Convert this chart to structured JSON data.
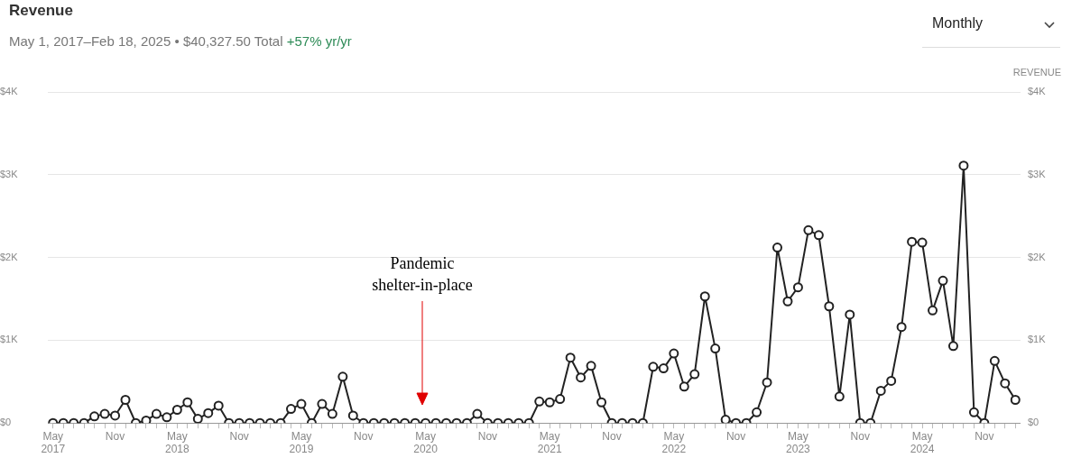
{
  "chart_data": {
    "type": "line",
    "title": "Revenue",
    "subtitle": "May 1, 2017–Feb 18, 2025 • $40,327.50 Total",
    "y2label": "REVENUE",
    "annotations": [
      "+57% yr/yr",
      "Monthly",
      "Pandemic shelter-in-place"
    ],
    "categories": [
      "May 2017",
      null,
      null,
      null,
      null,
      null,
      "Nov",
      null,
      null,
      null,
      null,
      null,
      "May 2018",
      null,
      null,
      null,
      null,
      null,
      "Nov",
      null,
      null,
      null,
      null,
      null,
      "May 2019",
      null,
      null,
      null,
      null,
      null,
      "Nov",
      null,
      null,
      null,
      null,
      null,
      "May 2020",
      null,
      null,
      null,
      null,
      null,
      "Nov",
      null,
      null,
      null,
      null,
      null,
      "May 2021",
      null,
      null,
      null,
      null,
      null,
      "Nov",
      null,
      null,
      null,
      null,
      null,
      "May 2022",
      null,
      null,
      null,
      null,
      null,
      "Nov",
      null,
      null,
      null,
      null,
      null,
      "May 2023",
      null,
      null,
      null,
      null,
      null,
      "Nov",
      null,
      null,
      null,
      null,
      null,
      "May 2024",
      null,
      null,
      null,
      null,
      null,
      "Nov",
      null,
      null,
      null
    ],
    "series": [
      {
        "color": "#222222",
        "values": [
          0,
          0,
          0,
          0,
          80,
          110,
          90,
          280,
          0,
          30,
          110,
          70,
          160,
          250,
          50,
          120,
          210,
          0,
          0,
          0,
          0,
          0,
          0,
          170,
          230,
          0,
          230,
          110,
          560,
          90,
          0,
          0,
          0,
          0,
          0,
          0,
          0,
          0,
          0,
          0,
          0,
          110,
          0,
          0,
          0,
          0,
          0,
          260,
          250,
          290,
          790,
          550,
          690,
          250,
          0,
          0,
          0,
          0,
          680,
          660,
          840,
          440,
          590,
          1530,
          900,
          40,
          0,
          0,
          130,
          490,
          2120,
          1470,
          1640,
          2330,
          2270,
          1410,
          320,
          1310,
          0,
          0,
          390,
          510,
          1160,
          2190,
          2180,
          1360,
          1720,
          930,
          3110,
          130,
          0,
          750,
          480,
          280
        ]
      }
    ],
    "ylim": [
      0,
      4000
    ],
    "yticks": [
      {
        "value": 0,
        "label": "$0"
      },
      {
        "value": 1000,
        "label": "$1K"
      },
      {
        "value": 2000,
        "label": "$2K"
      },
      {
        "value": 3000,
        "label": "$3K"
      },
      {
        "value": 4000,
        "label": "$4K"
      }
    ],
    "y2lim": [
      0,
      4000
    ],
    "y2ticks": [
      {
        "value": 0,
        "label": "$0"
      },
      {
        "value": 1000,
        "label": "$1K"
      },
      {
        "value": 2000,
        "label": "$2K"
      },
      {
        "value": 3000,
        "label": "$3K"
      },
      {
        "value": 4000,
        "label": "$4K"
      }
    ],
    "grid": "y",
    "legend": false,
    "marker": "circle"
  }
}
